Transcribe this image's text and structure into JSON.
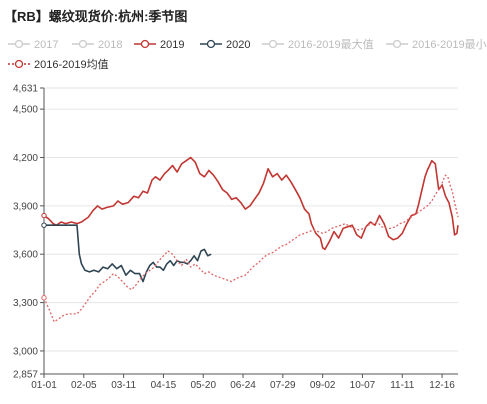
{
  "chart_data": {
    "type": "line",
    "title": "【RB】螺纹现货价:杭州:季节图",
    "legend": [
      {
        "name": "2017",
        "color": "#cccccc",
        "style": "solid",
        "active": false
      },
      {
        "name": "2018",
        "color": "#cccccc",
        "style": "solid",
        "active": false
      },
      {
        "name": "2019",
        "color": "#c23531",
        "style": "solid",
        "active": true
      },
      {
        "name": "2020",
        "color": "#2f4554",
        "style": "solid",
        "active": true
      },
      {
        "name": "2016-2019最大值",
        "color": "#cccccc",
        "style": "solid",
        "active": false
      },
      {
        "name": "2016-2019最小值",
        "color": "#cccccc",
        "style": "solid",
        "active": false
      },
      {
        "name": "2016-2019均值",
        "color": "#c23531",
        "style": "dotted",
        "active": true
      }
    ],
    "x_ticks": [
      "01-01",
      "02-05",
      "03-11",
      "04-15",
      "05-20",
      "06-24",
      "07-29",
      "09-02",
      "10-07",
      "11-11",
      "12-16"
    ],
    "y_ticks": [
      2857,
      3000,
      3300,
      3600,
      3900,
      4200,
      4500,
      4631
    ],
    "ylim": [
      2857,
      4631
    ],
    "x_domain": [
      1,
      365
    ],
    "grid": true,
    "series": [
      {
        "name": "2019",
        "color": "#c23531",
        "style": "solid",
        "points": [
          [
            1,
            3840
          ],
          [
            5,
            3820
          ],
          [
            9,
            3790
          ],
          [
            12,
            3780
          ],
          [
            16,
            3800
          ],
          [
            20,
            3790
          ],
          [
            25,
            3800
          ],
          [
            30,
            3790
          ],
          [
            34,
            3800
          ],
          [
            40,
            3830
          ],
          [
            44,
            3870
          ],
          [
            48,
            3900
          ],
          [
            52,
            3880
          ],
          [
            56,
            3890
          ],
          [
            62,
            3900
          ],
          [
            66,
            3930
          ],
          [
            70,
            3910
          ],
          [
            75,
            3920
          ],
          [
            80,
            3960
          ],
          [
            84,
            3950
          ],
          [
            88,
            3990
          ],
          [
            92,
            3980
          ],
          [
            96,
            4060
          ],
          [
            99,
            4080
          ],
          [
            103,
            4060
          ],
          [
            107,
            4100
          ],
          [
            110,
            4120
          ],
          [
            114,
            4150
          ],
          [
            118,
            4110
          ],
          [
            122,
            4160
          ],
          [
            126,
            4180
          ],
          [
            130,
            4200
          ],
          [
            134,
            4170
          ],
          [
            138,
            4100
          ],
          [
            142,
            4080
          ],
          [
            146,
            4120
          ],
          [
            150,
            4090
          ],
          [
            154,
            4050
          ],
          [
            158,
            4000
          ],
          [
            162,
            3980
          ],
          [
            166,
            3940
          ],
          [
            170,
            3950
          ],
          [
            174,
            3920
          ],
          [
            178,
            3880
          ],
          [
            182,
            3900
          ],
          [
            186,
            3940
          ],
          [
            190,
            3980
          ],
          [
            194,
            4040
          ],
          [
            198,
            4130
          ],
          [
            202,
            4080
          ],
          [
            206,
            4100
          ],
          [
            210,
            4060
          ],
          [
            214,
            4090
          ],
          [
            218,
            4050
          ],
          [
            222,
            4000
          ],
          [
            226,
            3950
          ],
          [
            230,
            3880
          ],
          [
            234,
            3850
          ],
          [
            236,
            3790
          ],
          [
            240,
            3730
          ],
          [
            244,
            3700
          ],
          [
            246,
            3640
          ],
          [
            248,
            3630
          ],
          [
            252,
            3680
          ],
          [
            256,
            3740
          ],
          [
            260,
            3700
          ],
          [
            264,
            3760
          ],
          [
            268,
            3770
          ],
          [
            272,
            3780
          ],
          [
            276,
            3720
          ],
          [
            280,
            3700
          ],
          [
            284,
            3770
          ],
          [
            288,
            3800
          ],
          [
            292,
            3780
          ],
          [
            296,
            3840
          ],
          [
            300,
            3790
          ],
          [
            304,
            3710
          ],
          [
            308,
            3690
          ],
          [
            312,
            3700
          ],
          [
            316,
            3730
          ],
          [
            320,
            3790
          ],
          [
            324,
            3840
          ],
          [
            328,
            3850
          ],
          [
            330,
            3900
          ],
          [
            333,
            3990
          ],
          [
            336,
            4080
          ],
          [
            338,
            4120
          ],
          [
            340,
            4150
          ],
          [
            342,
            4180
          ],
          [
            345,
            4160
          ],
          [
            348,
            4000
          ],
          [
            351,
            4030
          ],
          [
            354,
            3960
          ],
          [
            357,
            3920
          ],
          [
            360,
            3830
          ],
          [
            362,
            3720
          ],
          [
            364,
            3730
          ],
          [
            365,
            3780
          ]
        ]
      },
      {
        "name": "2020",
        "color": "#2f4554",
        "style": "solid",
        "points": [
          [
            1,
            3780
          ],
          [
            8,
            3780
          ],
          [
            14,
            3780
          ],
          [
            20,
            3780
          ],
          [
            25,
            3780
          ],
          [
            30,
            3780
          ],
          [
            32,
            3600
          ],
          [
            34,
            3540
          ],
          [
            37,
            3500
          ],
          [
            41,
            3490
          ],
          [
            45,
            3500
          ],
          [
            49,
            3490
          ],
          [
            53,
            3520
          ],
          [
            57,
            3510
          ],
          [
            61,
            3540
          ],
          [
            65,
            3510
          ],
          [
            69,
            3530
          ],
          [
            73,
            3470
          ],
          [
            77,
            3500
          ],
          [
            81,
            3480
          ],
          [
            85,
            3480
          ],
          [
            88,
            3430
          ],
          [
            91,
            3490
          ],
          [
            94,
            3530
          ],
          [
            97,
            3550
          ],
          [
            100,
            3520
          ],
          [
            103,
            3520
          ],
          [
            106,
            3500
          ],
          [
            109,
            3540
          ],
          [
            112,
            3560
          ],
          [
            115,
            3530
          ],
          [
            118,
            3560
          ],
          [
            121,
            3550
          ],
          [
            124,
            3550
          ],
          [
            127,
            3540
          ],
          [
            130,
            3560
          ],
          [
            133,
            3590
          ],
          [
            136,
            3560
          ],
          [
            139,
            3620
          ],
          [
            142,
            3630
          ],
          [
            145,
            3590
          ],
          [
            148,
            3600
          ]
        ]
      },
      {
        "name": "2016-2019均值",
        "color": "#e06666",
        "style": "dotted",
        "points": [
          [
            1,
            3330
          ],
          [
            6,
            3250
          ],
          [
            10,
            3180
          ],
          [
            14,
            3200
          ],
          [
            18,
            3220
          ],
          [
            22,
            3230
          ],
          [
            26,
            3230
          ],
          [
            30,
            3230
          ],
          [
            34,
            3260
          ],
          [
            38,
            3300
          ],
          [
            42,
            3340
          ],
          [
            46,
            3370
          ],
          [
            50,
            3410
          ],
          [
            54,
            3430
          ],
          [
            58,
            3450
          ],
          [
            62,
            3480
          ],
          [
            66,
            3460
          ],
          [
            70,
            3430
          ],
          [
            74,
            3400
          ],
          [
            78,
            3380
          ],
          [
            82,
            3410
          ],
          [
            86,
            3450
          ],
          [
            90,
            3480
          ],
          [
            94,
            3500
          ],
          [
            98,
            3520
          ],
          [
            102,
            3560
          ],
          [
            106,
            3590
          ],
          [
            110,
            3620
          ],
          [
            114,
            3600
          ],
          [
            118,
            3560
          ],
          [
            122,
            3530
          ],
          [
            126,
            3570
          ],
          [
            130,
            3520
          ],
          [
            134,
            3540
          ],
          [
            138,
            3510
          ],
          [
            142,
            3480
          ],
          [
            146,
            3490
          ],
          [
            150,
            3470
          ],
          [
            154,
            3460
          ],
          [
            158,
            3450
          ],
          [
            162,
            3440
          ],
          [
            166,
            3430
          ],
          [
            170,
            3450
          ],
          [
            174,
            3460
          ],
          [
            178,
            3470
          ],
          [
            182,
            3500
          ],
          [
            186,
            3530
          ],
          [
            190,
            3550
          ],
          [
            194,
            3580
          ],
          [
            198,
            3600
          ],
          [
            202,
            3610
          ],
          [
            206,
            3630
          ],
          [
            210,
            3650
          ],
          [
            214,
            3660
          ],
          [
            218,
            3680
          ],
          [
            222,
            3700
          ],
          [
            226,
            3720
          ],
          [
            230,
            3730
          ],
          [
            234,
            3740
          ],
          [
            238,
            3750
          ],
          [
            242,
            3740
          ],
          [
            246,
            3730
          ],
          [
            250,
            3740
          ],
          [
            254,
            3760
          ],
          [
            258,
            3770
          ],
          [
            262,
            3780
          ],
          [
            266,
            3790
          ],
          [
            270,
            3770
          ],
          [
            274,
            3760
          ],
          [
            278,
            3750
          ],
          [
            282,
            3760
          ],
          [
            286,
            3780
          ],
          [
            290,
            3790
          ],
          [
            294,
            3800
          ],
          [
            298,
            3770
          ],
          [
            302,
            3760
          ],
          [
            306,
            3760
          ],
          [
            310,
            3770
          ],
          [
            314,
            3790
          ],
          [
            318,
            3800
          ],
          [
            322,
            3820
          ],
          [
            326,
            3840
          ],
          [
            330,
            3860
          ],
          [
            334,
            3880
          ],
          [
            338,
            3900
          ],
          [
            342,
            3930
          ],
          [
            345,
            3970
          ],
          [
            348,
            4000
          ],
          [
            350,
            4020
          ],
          [
            352,
            4060
          ],
          [
            354,
            4090
          ],
          [
            356,
            4080
          ],
          [
            358,
            4030
          ],
          [
            360,
            3990
          ],
          [
            362,
            3920
          ],
          [
            364,
            3860
          ],
          [
            365,
            3830
          ]
        ]
      }
    ]
  }
}
